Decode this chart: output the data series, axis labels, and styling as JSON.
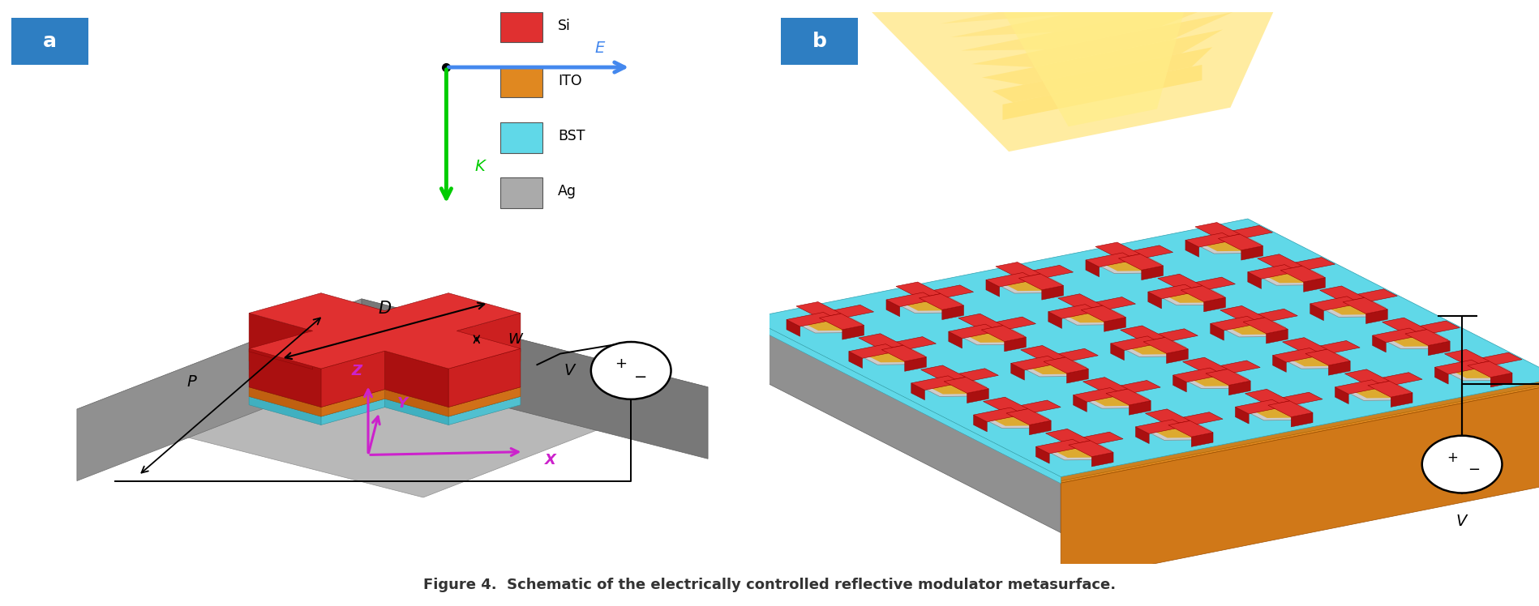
{
  "figure_width": 18.98,
  "figure_height": 7.48,
  "dpi": 100,
  "background_color": "#ffffff",
  "panel_a_label": "a",
  "panel_b_label": "b",
  "label_bg_color": "#2e7ec2",
  "label_text_color": "#ffffff",
  "label_fontsize": 18,
  "caption": "Figure 4.  Schematic of the electrically controlled reflective modulator metasurface.",
  "caption_fontsize": 13,
  "legend_items": [
    {
      "label": "Si",
      "color": "#e03030"
    },
    {
      "label": "ITO",
      "color": "#e08820"
    },
    {
      "label": "BST",
      "color": "#60d8e8"
    },
    {
      "label": "Ag",
      "color": "#aaaaaa"
    }
  ],
  "arrow_blue_color": "#4488ee",
  "arrow_green_color": "#00cc00",
  "axis_color": "#cc22cc",
  "si_color": "#e03030",
  "si_dark": "#aa1010",
  "si_side": "#cc2020",
  "ito_color": "#e08820",
  "ito_dark": "#b06010",
  "bst_color": "#60d8e8",
  "bst_dark": "#30a8b8",
  "ag_color": "#bbbbbb",
  "ag_dark": "#888888",
  "plate_color": "#aaaaaa",
  "plate_top": "#b8b8b8",
  "plate_left": "#909090",
  "plate_front": "#787878"
}
